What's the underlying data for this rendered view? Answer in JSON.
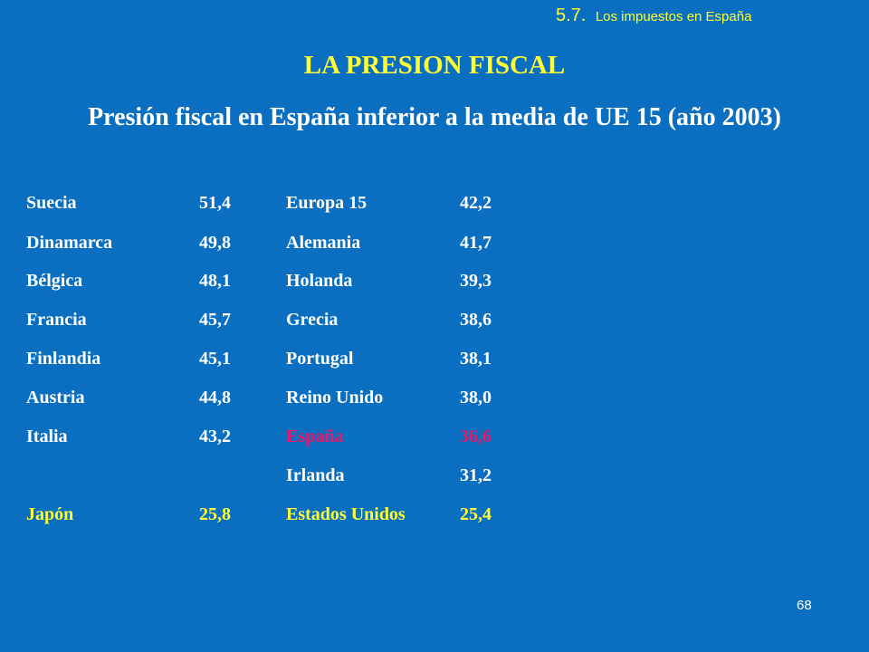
{
  "section": {
    "number": "5.7.",
    "text": "Los impuestos en España"
  },
  "title": "LA PRESION FISCAL",
  "subtitle": "Presión fiscal en España inferior a la media de UE 15  (año 2003)",
  "left_column": [
    {
      "country": "Suecia",
      "value": "51,4"
    },
    {
      "country": "Dinamarca",
      "value": "49,8"
    },
    {
      "country": "Bélgica",
      "value": "48,1"
    },
    {
      "country": "Francia",
      "value": "45,7"
    },
    {
      "country": "Finlandia",
      "value": "45,1"
    },
    {
      "country": "Austria",
      "value": "44,8"
    },
    {
      "country": "Italia",
      "value": "43,2"
    },
    {
      "country": "",
      "value": ""
    },
    {
      "country": "Japón",
      "value": "25,8"
    }
  ],
  "right_column": [
    {
      "country": "Europa 15",
      "value": "42,2"
    },
    {
      "country": "Alemania",
      "value": "41,7"
    },
    {
      "country": "Holanda",
      "value": "39,3"
    },
    {
      "country": "Grecia",
      "value": "38,6"
    },
    {
      "country": "Portugal",
      "value": "38,1"
    },
    {
      "country": "Reino Unido",
      "value": "38,0"
    },
    {
      "country": "España",
      "value": "36,6"
    },
    {
      "country": "Irlanda",
      "value": "31,2"
    },
    {
      "country": "Estados Unidos",
      "value": "25,4"
    }
  ],
  "page_number": "68",
  "colors": {
    "background": "#0a6fc0",
    "title": "#ffff33",
    "text": "#ffffff",
    "highlight_spain": "#e8186d",
    "highlight_non_eu": "#ffff33"
  }
}
